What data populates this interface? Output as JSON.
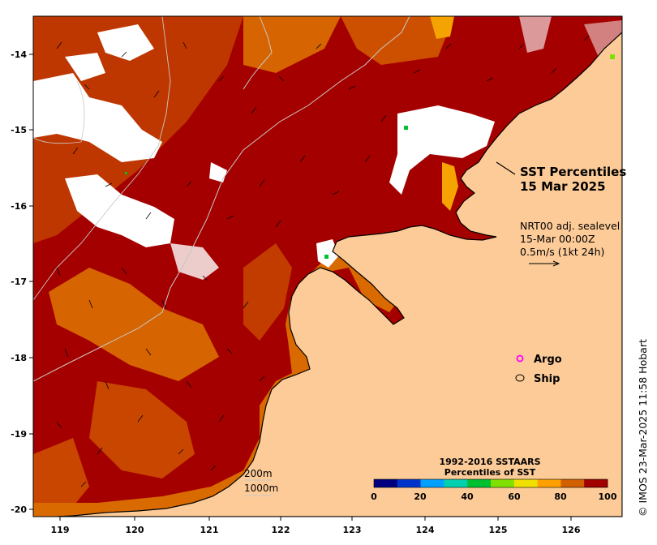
{
  "title": {
    "line1": "SST Percentiles",
    "line2": "15 Mar 2025"
  },
  "current_info": {
    "line1": "NRT00 adj. sealevel",
    "line2": "15-Mar 00:00Z",
    "line3": "0.5m/s (1kt 24h)"
  },
  "legend": {
    "argo": "Argo",
    "ship": "Ship",
    "argo_color": "#ff00ff"
  },
  "contours": {
    "label_200": "200m",
    "label_1000": "1000m"
  },
  "colorbar": {
    "title1": "1992-2016 SSTAARS",
    "title2": "Percentiles of SST",
    "ticks": [
      "0",
      "20",
      "40",
      "60",
      "80",
      "100"
    ],
    "colors": [
      "#00007f",
      "#0033cc",
      "#00a0ff",
      "#00d0b0",
      "#00c030",
      "#80e000",
      "#f0e000",
      "#ffa000",
      "#d06000",
      "#a00000"
    ]
  },
  "axes": {
    "lon_ticks": [
      "119",
      "120",
      "121",
      "122",
      "123",
      "124",
      "125",
      "126"
    ],
    "lat_ticks": [
      "-14",
      "-15",
      "-16",
      "-17",
      "-18",
      "-19",
      "-20"
    ]
  },
  "credit": "© IMOS 23-Mar-2025 11:58 Hobart",
  "palette": {
    "land": "#fdcb98",
    "sst_high": "#a50000",
    "sst_mid": "#d96a00",
    "sst_low": "#f5a300",
    "no_data": "#ffffff"
  }
}
